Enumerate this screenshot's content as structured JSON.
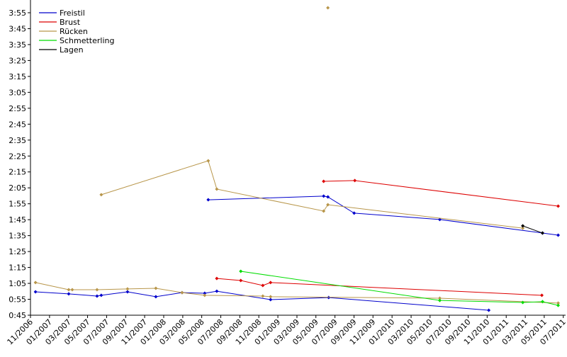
{
  "chart_data": {
    "type": "line",
    "legend": "top-left",
    "grid": false,
    "xlim": [
      2006.833,
      2011.52
    ],
    "ylim": [
      45,
      243
    ],
    "xticks": [
      {
        "value": 2006.833,
        "label": "11/2006"
      },
      {
        "value": 2007.0,
        "label": "01/2007"
      },
      {
        "value": 2007.167,
        "label": "03/2007"
      },
      {
        "value": 2007.333,
        "label": "05/2007"
      },
      {
        "value": 2007.5,
        "label": "07/2007"
      },
      {
        "value": 2007.667,
        "label": "09/2007"
      },
      {
        "value": 2007.833,
        "label": "11/2007"
      },
      {
        "value": 2008.0,
        "label": "01/2008"
      },
      {
        "value": 2008.167,
        "label": "03/2008"
      },
      {
        "value": 2008.333,
        "label": "05/2008"
      },
      {
        "value": 2008.5,
        "label": "07/2008"
      },
      {
        "value": 2008.667,
        "label": "09/2008"
      },
      {
        "value": 2008.833,
        "label": "11/2008"
      },
      {
        "value": 2009.0,
        "label": "01/2009"
      },
      {
        "value": 2009.167,
        "label": "03/2009"
      },
      {
        "value": 2009.333,
        "label": "05/2009"
      },
      {
        "value": 2009.5,
        "label": "07/2009"
      },
      {
        "value": 2009.667,
        "label": "09/2009"
      },
      {
        "value": 2009.833,
        "label": "11/2009"
      },
      {
        "value": 2010.0,
        "label": "01/2010"
      },
      {
        "value": 2010.167,
        "label": "03/2010"
      },
      {
        "value": 2010.333,
        "label": "05/2010"
      },
      {
        "value": 2010.5,
        "label": "07/2010"
      },
      {
        "value": 2010.667,
        "label": "09/2010"
      },
      {
        "value": 2010.833,
        "label": "11/2010"
      },
      {
        "value": 2011.0,
        "label": "01/2011"
      },
      {
        "value": 2011.167,
        "label": "03/2011"
      },
      {
        "value": 2011.333,
        "label": "05/2011"
      },
      {
        "value": 2011.5,
        "label": "07/2011"
      }
    ],
    "yticks": [
      {
        "value": 45,
        "label": "0:45"
      },
      {
        "value": 55,
        "label": "0:55"
      },
      {
        "value": 65,
        "label": "1:05"
      },
      {
        "value": 75,
        "label": "1:15"
      },
      {
        "value": 85,
        "label": "1:25"
      },
      {
        "value": 95,
        "label": "1:35"
      },
      {
        "value": 105,
        "label": "1:45"
      },
      {
        "value": 115,
        "label": "1:55"
      },
      {
        "value": 125,
        "label": "2:05"
      },
      {
        "value": 135,
        "label": "2:15"
      },
      {
        "value": 145,
        "label": "2:25"
      },
      {
        "value": 155,
        "label": "2:35"
      },
      {
        "value": 165,
        "label": "2:45"
      },
      {
        "value": 175,
        "label": "2:55"
      },
      {
        "value": 185,
        "label": "3:05"
      },
      {
        "value": 195,
        "label": "3:15"
      },
      {
        "value": 205,
        "label": "3:25"
      },
      {
        "value": 215,
        "label": "3:35"
      },
      {
        "value": 225,
        "label": "3:45"
      },
      {
        "value": 235,
        "label": "3:55"
      }
    ],
    "series": [
      {
        "name": "Freistil",
        "color": "#0000cc",
        "x": [
          2006.877,
          2007.168,
          2007.416,
          2007.453,
          2007.683,
          2007.931,
          2008.161,
          2008.359,
          2008.465,
          2008.936,
          2009.445,
          2010.847,
          null,
          2008.39,
          2009.401,
          2009.438,
          2009.668,
          2010.418,
          2011.318,
          2011.455
        ],
        "values": [
          59.7,
          58.4,
          57.0,
          57.5,
          59.7,
          56.6,
          59.2,
          58.8,
          60.1,
          54.8,
          56.1,
          48.1,
          null,
          117.5,
          119.8,
          119.3,
          109.1,
          105.1,
          96.6,
          95.3
        ]
      },
      {
        "name": "Brust",
        "color": "#dd0000",
        "x": [
          2008.465,
          2008.675,
          2008.868,
          2008.936,
          2011.312,
          null,
          2009.401,
          2009.674,
          2011.455
        ],
        "values": [
          68.1,
          66.8,
          63.7,
          65.5,
          57.5,
          null,
          129.1,
          129.6,
          113.5
        ]
      },
      {
        "name": "Rücken",
        "color": "#b8964a",
        "x": [
          2006.877,
          2007.168,
          2007.199,
          2007.416,
          2007.683,
          2007.931,
          2008.161,
          2008.359,
          2008.868,
          2008.936,
          2010.418,
          2011.455,
          null,
          2007.453,
          2008.39,
          2008.465,
          2009.401,
          2009.438,
          2011.145,
          null,
          2009.438
        ],
        "values": [
          65.5,
          61.0,
          61.0,
          61.0,
          61.5,
          61.9,
          59.2,
          57.5,
          57.0,
          56.6,
          55.7,
          52.6,
          null,
          120.7,
          142.0,
          124.2,
          110.4,
          114.4,
          99.7,
          null,
          238.1
        ]
      },
      {
        "name": "Schmetterling",
        "color": "#00dd00",
        "x": [
          2008.675,
          2010.418,
          2011.145,
          2011.318,
          2011.455
        ],
        "values": [
          72.6,
          54.3,
          53.0,
          53.5,
          51.2
        ]
      },
      {
        "name": "Lagen",
        "color": "#000000",
        "x": [
          2011.145,
          2011.318
        ],
        "values": [
          101.1,
          96.6
        ]
      }
    ]
  }
}
